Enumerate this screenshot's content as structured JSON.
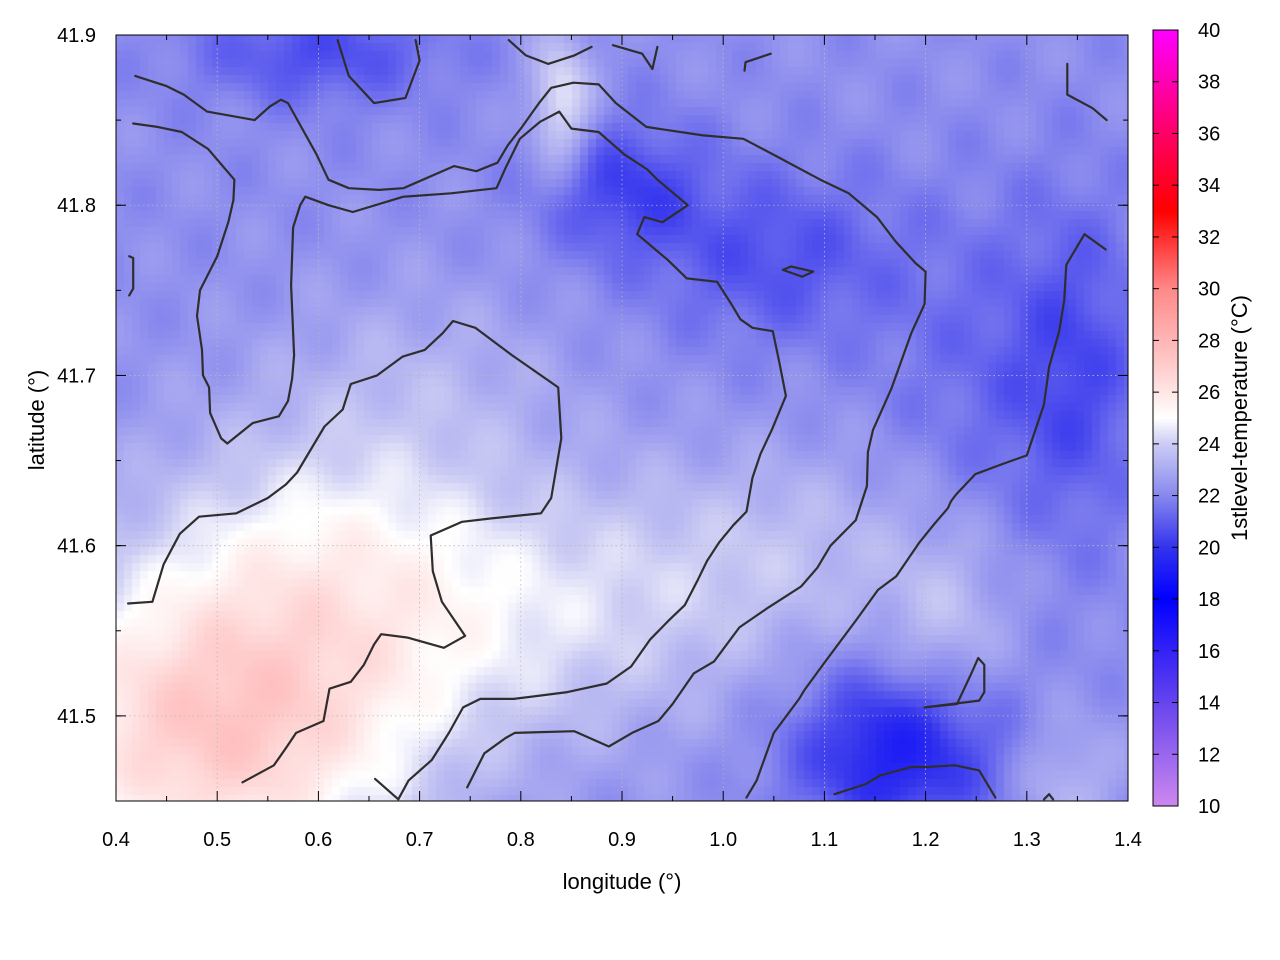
{
  "chart_data": {
    "type": "heatmap",
    "xlabel": "longitude (°)",
    "ylabel": "latitude (°)",
    "colorbar_label": "1stlevel-temperature (°C)",
    "xlim": [
      0.4,
      1.4
    ],
    "ylim": [
      41.45,
      41.9
    ],
    "xticks": [
      "0.4",
      "0.5",
      "0.6",
      "0.7",
      "0.8",
      "0.9",
      "1.0",
      "1.1",
      "1.2",
      "1.3",
      "1.4"
    ],
    "yticks": [
      "41.5",
      "41.6",
      "41.7",
      "41.8",
      "41.9"
    ],
    "ytick_values": [
      41.5,
      41.6,
      41.7,
      41.8,
      41.9
    ],
    "colorbar_range": [
      10,
      40
    ],
    "colorbar_ticks": [
      "10",
      "12",
      "14",
      "16",
      "18",
      "20",
      "22",
      "24",
      "26",
      "28",
      "30",
      "32",
      "34",
      "36",
      "38",
      "40"
    ],
    "colormap": [
      {
        "value": 10,
        "color": "#cc88ee"
      },
      {
        "value": 12,
        "color": "#9966ee"
      },
      {
        "value": 14,
        "color": "#6644ee"
      },
      {
        "value": 18,
        "color": "#0000ff"
      },
      {
        "value": 20,
        "color": "#3333ee"
      },
      {
        "value": 22,
        "color": "#8888ee"
      },
      {
        "value": 24,
        "color": "#ccccf4"
      },
      {
        "value": 25,
        "color": "#ffffff"
      },
      {
        "value": 27,
        "color": "#ffcccc"
      },
      {
        "value": 30,
        "color": "#ff8888"
      },
      {
        "value": 33,
        "color": "#ff0000"
      },
      {
        "value": 36,
        "color": "#ff0066"
      },
      {
        "value": 40,
        "color": "#ff00ff"
      }
    ],
    "grid": true,
    "temperature_field": {
      "base": 22.2,
      "warm_blobs": [
        {
          "lon": 0.5,
          "lat": 41.49,
          "rx": 0.2,
          "ry": 0.09,
          "amp": 4.8
        },
        {
          "lon": 0.62,
          "lat": 41.6,
          "rx": 0.2,
          "ry": 0.08,
          "amp": 2.2
        },
        {
          "lon": 0.83,
          "lat": 41.55,
          "rx": 0.22,
          "ry": 0.07,
          "amp": 1.5
        },
        {
          "lon": 1.05,
          "lat": 41.6,
          "rx": 0.2,
          "ry": 0.06,
          "amp": 1.2
        },
        {
          "lon": 0.7,
          "lat": 41.7,
          "rx": 0.15,
          "ry": 0.06,
          "amp": 0.8
        },
        {
          "lon": 0.84,
          "lat": 41.86,
          "rx": 0.03,
          "ry": 0.04,
          "amp": 2.5
        },
        {
          "lon": 1.22,
          "lat": 41.55,
          "rx": 0.06,
          "ry": 0.05,
          "amp": 1.2
        },
        {
          "lon": 1.34,
          "lat": 41.46,
          "rx": 0.05,
          "ry": 0.04,
          "amp": 1.2
        }
      ],
      "cold_blobs": [
        {
          "lon": 1.17,
          "lat": 41.48,
          "rx": 0.1,
          "ry": 0.05,
          "amp": 3.0
        },
        {
          "lon": 0.9,
          "lat": 41.81,
          "rx": 0.08,
          "ry": 0.04,
          "amp": 1.8
        },
        {
          "lon": 1.05,
          "lat": 41.77,
          "rx": 0.12,
          "ry": 0.05,
          "amp": 1.5
        },
        {
          "lon": 0.6,
          "lat": 41.89,
          "rx": 0.12,
          "ry": 0.03,
          "amp": 1.6
        },
        {
          "lon": 1.35,
          "lat": 41.7,
          "rx": 0.07,
          "ry": 0.1,
          "amp": 1.5
        },
        {
          "lon": 1.25,
          "lat": 41.7,
          "rx": 0.1,
          "ry": 0.1,
          "amp": 0.8
        }
      ]
    },
    "contours": [
      [
        [
          0.419,
          41.876
        ],
        [
          0.45,
          41.87
        ],
        [
          0.467,
          41.865
        ],
        [
          0.49,
          41.855
        ],
        [
          0.537,
          41.85
        ],
        [
          0.552,
          41.858
        ],
        [
          0.563,
          41.862
        ],
        [
          0.57,
          41.86
        ],
        [
          0.598,
          41.83
        ],
        [
          0.61,
          41.815
        ],
        [
          0.63,
          41.81
        ],
        [
          0.66,
          41.809
        ],
        [
          0.684,
          41.81
        ],
        [
          0.734,
          41.823
        ],
        [
          0.756,
          41.82
        ],
        [
          0.777,
          41.825
        ],
        [
          0.787,
          41.835
        ],
        [
          0.8,
          41.845
        ],
        [
          0.818,
          41.86
        ],
        [
          0.83,
          41.869
        ],
        [
          0.852,
          41.872
        ],
        [
          0.877,
          41.871
        ],
        [
          0.894,
          41.86
        ],
        [
          0.924,
          41.846
        ],
        [
          0.98,
          41.841
        ],
        [
          1.02,
          41.839
        ],
        [
          1.052,
          41.829
        ],
        [
          1.096,
          41.815
        ],
        [
          1.124,
          41.807
        ],
        [
          1.152,
          41.793
        ],
        [
          1.17,
          41.779
        ],
        [
          1.19,
          41.766
        ],
        [
          1.2,
          41.761
        ],
        [
          1.199,
          41.742
        ],
        [
          1.186,
          41.725
        ],
        [
          1.166,
          41.692
        ],
        [
          1.148,
          41.668
        ],
        [
          1.143,
          41.655
        ],
        [
          1.142,
          41.635
        ],
        [
          1.131,
          41.615
        ],
        [
          1.106,
          41.6
        ],
        [
          1.093,
          41.587
        ],
        [
          1.077,
          41.576
        ],
        [
          1.043,
          41.563
        ],
        [
          1.016,
          41.552
        ],
        [
          0.991,
          41.532
        ],
        [
          0.971,
          41.525
        ],
        [
          0.95,
          41.507
        ],
        [
          0.936,
          41.497
        ],
        [
          0.91,
          41.49
        ],
        [
          0.887,
          41.482
        ],
        [
          0.853,
          41.491
        ],
        [
          0.794,
          41.49
        ],
        [
          0.785,
          41.487
        ],
        [
          0.764,
          41.478
        ],
        [
          0.747,
          41.458
        ]
      ],
      [
        [
          0.417,
          41.848
        ],
        [
          0.441,
          41.846
        ],
        [
          0.465,
          41.843
        ],
        [
          0.491,
          41.833
        ],
        [
          0.517,
          41.815
        ],
        [
          0.516,
          41.803
        ],
        [
          0.511,
          41.79
        ],
        [
          0.5,
          41.77
        ],
        [
          0.483,
          41.75
        ],
        [
          0.48,
          41.735
        ],
        [
          0.485,
          41.715
        ],
        [
          0.486,
          41.7
        ],
        [
          0.492,
          41.693
        ],
        [
          0.493,
          41.678
        ],
        [
          0.504,
          41.663
        ],
        [
          0.51,
          41.66
        ],
        [
          0.535,
          41.672
        ],
        [
          0.561,
          41.676
        ],
        [
          0.57,
          41.685
        ],
        [
          0.574,
          41.698
        ],
        [
          0.576,
          41.712
        ],
        [
          0.573,
          41.753
        ],
        [
          0.575,
          41.787
        ],
        [
          0.582,
          41.8
        ],
        [
          0.587,
          41.805
        ],
        [
          0.61,
          41.8
        ],
        [
          0.634,
          41.796
        ],
        [
          0.684,
          41.805
        ],
        [
          0.731,
          41.807
        ],
        [
          0.776,
          41.81
        ],
        [
          0.785,
          41.822
        ],
        [
          0.799,
          41.839
        ],
        [
          0.819,
          41.849
        ],
        [
          0.838,
          41.855
        ],
        [
          0.85,
          41.845
        ],
        [
          0.877,
          41.843
        ],
        [
          0.902,
          41.83
        ],
        [
          0.925,
          41.821
        ],
        [
          0.935,
          41.815
        ],
        [
          0.965,
          41.8
        ],
        [
          0.94,
          41.79
        ],
        [
          0.922,
          41.793
        ],
        [
          0.915,
          41.783
        ],
        [
          0.927,
          41.777
        ],
        [
          0.945,
          41.768
        ],
        [
          0.964,
          41.757
        ],
        [
          0.994,
          41.755
        ],
        [
          1.008,
          41.742
        ],
        [
          1.017,
          41.733
        ],
        [
          1.029,
          41.728
        ],
        [
          1.049,
          41.726
        ],
        [
          1.056,
          41.706
        ],
        [
          1.062,
          41.688
        ],
        [
          1.048,
          41.668
        ],
        [
          1.037,
          41.654
        ],
        [
          1.029,
          41.64
        ],
        [
          1.023,
          41.62
        ],
        [
          1.01,
          41.612
        ],
        [
          0.996,
          41.602
        ],
        [
          0.984,
          41.591
        ],
        [
          0.975,
          41.58
        ],
        [
          0.962,
          41.565
        ],
        [
          0.946,
          41.556
        ],
        [
          0.928,
          41.545
        ],
        [
          0.909,
          41.529
        ],
        [
          0.885,
          41.519
        ],
        [
          0.846,
          41.514
        ],
        [
          0.793,
          41.51
        ],
        [
          0.76,
          41.51
        ],
        [
          0.743,
          41.505
        ],
        [
          0.729,
          41.49
        ],
        [
          0.712,
          41.474
        ],
        [
          0.689,
          41.462
        ],
        [
          0.679,
          41.451
        ],
        [
          0.656,
          41.463
        ]
      ],
      [
        [
          0.412,
          41.566
        ],
        [
          0.436,
          41.567
        ],
        [
          0.447,
          41.589
        ],
        [
          0.463,
          41.607
        ],
        [
          0.482,
          41.617
        ],
        [
          0.519,
          41.619
        ],
        [
          0.55,
          41.628
        ],
        [
          0.568,
          41.636
        ],
        [
          0.579,
          41.643
        ],
        [
          0.606,
          41.67
        ],
        [
          0.624,
          41.68
        ],
        [
          0.632,
          41.695
        ],
        [
          0.658,
          41.7
        ],
        [
          0.683,
          41.711
        ],
        [
          0.705,
          41.715
        ],
        [
          0.723,
          41.725
        ],
        [
          0.733,
          41.732
        ],
        [
          0.755,
          41.728
        ],
        [
          0.791,
          41.712
        ],
        [
          0.837,
          41.693
        ],
        [
          0.84,
          41.663
        ],
        [
          0.83,
          41.628
        ],
        [
          0.82,
          41.619
        ],
        [
          0.771,
          41.616
        ],
        [
          0.742,
          41.614
        ],
        [
          0.711,
          41.606
        ],
        [
          0.713,
          41.585
        ],
        [
          0.722,
          41.567
        ],
        [
          0.745,
          41.547
        ],
        [
          0.724,
          41.54
        ],
        [
          0.688,
          41.546
        ],
        [
          0.662,
          41.548
        ],
        [
          0.655,
          41.542
        ],
        [
          0.645,
          41.53
        ],
        [
          0.632,
          41.52
        ],
        [
          0.611,
          41.516
        ],
        [
          0.605,
          41.497
        ],
        [
          0.578,
          41.49
        ],
        [
          0.569,
          41.482
        ],
        [
          0.556,
          41.471
        ],
        [
          0.525,
          41.461
        ]
      ],
      [
        [
          0.413,
          41.77
        ],
        [
          0.417,
          41.769
        ],
        [
          0.417,
          41.751
        ],
        [
          0.413,
          41.747
        ]
      ],
      [
        [
          0.619,
          41.897
        ],
        [
          0.63,
          41.876
        ],
        [
          0.655,
          41.86
        ],
        [
          0.686,
          41.863
        ],
        [
          0.7,
          41.885
        ],
        [
          0.696,
          41.897
        ]
      ],
      [
        [
          0.788,
          41.897
        ],
        [
          0.805,
          41.888
        ],
        [
          0.827,
          41.883
        ],
        [
          0.853,
          41.888
        ],
        [
          0.87,
          41.893
        ]
      ],
      [
        [
          0.891,
          41.894
        ],
        [
          0.92,
          41.889
        ],
        [
          0.93,
          41.88
        ],
        [
          0.935,
          41.893
        ]
      ],
      [
        [
          1.021,
          41.879
        ],
        [
          1.022,
          41.884
        ],
        [
          1.047,
          41.889
        ]
      ],
      [
        [
          1.059,
          41.762
        ],
        [
          1.067,
          41.764
        ],
        [
          1.089,
          41.761
        ],
        [
          1.078,
          41.758
        ],
        [
          1.059,
          41.762
        ]
      ],
      [
        [
          1.34,
          41.883
        ],
        [
          1.34,
          41.865
        ],
        [
          1.365,
          41.857
        ],
        [
          1.379,
          41.85
        ]
      ],
      [
        [
          1.023,
          41.452
        ],
        [
          1.033,
          41.462
        ],
        [
          1.05,
          41.49
        ],
        [
          1.075,
          41.51
        ],
        [
          1.08,
          41.515
        ],
        [
          1.101,
          41.532
        ],
        [
          1.131,
          41.556
        ],
        [
          1.153,
          41.574
        ],
        [
          1.171,
          41.582
        ],
        [
          1.194,
          41.602
        ],
        [
          1.209,
          41.613
        ],
        [
          1.222,
          41.622
        ],
        [
          1.225,
          41.626
        ],
        [
          1.23,
          41.63
        ],
        [
          1.249,
          41.642
        ],
        [
          1.276,
          41.648
        ],
        [
          1.3,
          41.653
        ],
        [
          1.317,
          41.683
        ],
        [
          1.322,
          41.705
        ],
        [
          1.332,
          41.726
        ],
        [
          1.337,
          41.744
        ],
        [
          1.339,
          41.765
        ],
        [
          1.357,
          41.783
        ],
        [
          1.378,
          41.774
        ]
      ],
      [
        [
          1.11,
          41.454
        ],
        [
          1.141,
          41.46
        ],
        [
          1.155,
          41.465
        ],
        [
          1.186,
          41.47
        ],
        [
          1.2,
          41.47
        ],
        [
          1.229,
          41.471
        ],
        [
          1.253,
          41.468
        ],
        [
          1.269,
          41.452
        ]
      ],
      [
        [
          1.199,
          41.505
        ],
        [
          1.253,
          41.509
        ],
        [
          1.258,
          41.514
        ],
        [
          1.258,
          41.53
        ],
        [
          1.252,
          41.534
        ],
        [
          1.246,
          41.526
        ],
        [
          1.231,
          41.507
        ],
        [
          1.199,
          41.505
        ]
      ],
      [
        [
          1.317,
          41.451
        ],
        [
          1.322,
          41.454
        ],
        [
          1.326,
          41.451
        ]
      ]
    ]
  }
}
